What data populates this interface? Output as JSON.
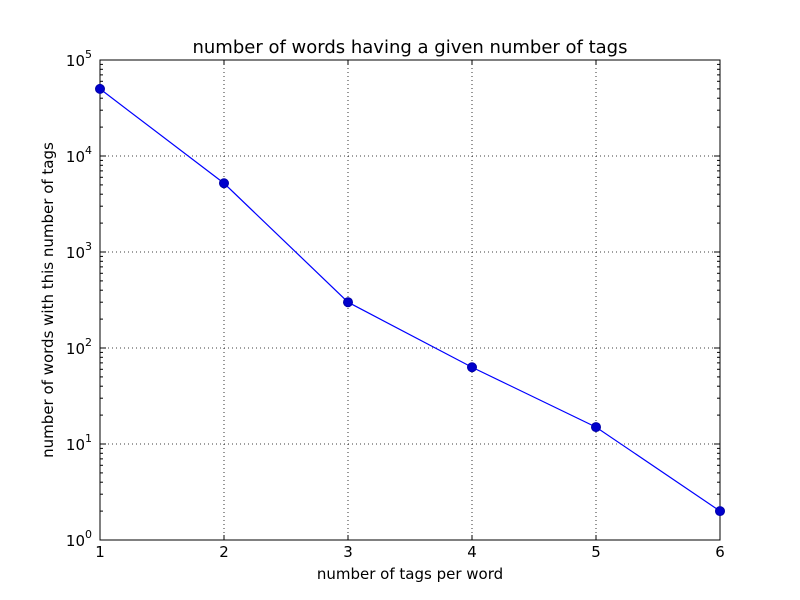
{
  "chart_data": {
    "type": "line",
    "title": "number of words having a given number of tags",
    "xlabel": "number of tags per word",
    "ylabel": "number of words with this number of tags",
    "x": [
      1,
      2,
      3,
      4,
      5,
      6
    ],
    "series": [
      {
        "values": [
          50000,
          5200,
          300,
          63,
          15,
          2
        ],
        "color": "#0000ff",
        "marker": "circle"
      }
    ],
    "xlim": [
      1,
      6
    ],
    "ylim": [
      1,
      100000
    ],
    "yscale": "log",
    "x_ticks": [
      "1",
      "2",
      "3",
      "4",
      "5",
      "6"
    ],
    "y_ticks": [
      {
        "base": "10",
        "exp": "0"
      },
      {
        "base": "10",
        "exp": "1"
      },
      {
        "base": "10",
        "exp": "2"
      },
      {
        "base": "10",
        "exp": "3"
      },
      {
        "base": "10",
        "exp": "4"
      },
      {
        "base": "10",
        "exp": "5"
      }
    ],
    "grid": true
  }
}
